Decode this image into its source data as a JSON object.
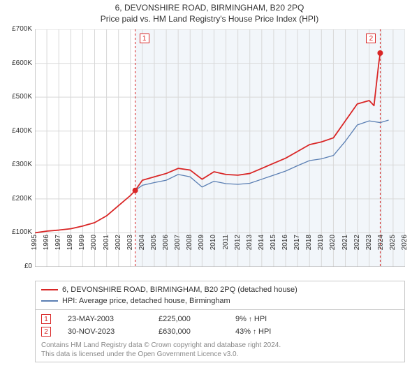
{
  "title_line1": "6, DEVONSHIRE ROAD, BIRMINGHAM, B20 2PQ",
  "title_line2": "Price paid vs. HM Land Registry's House Price Index (HPI)",
  "chart": {
    "type": "line",
    "xlim": [
      1995,
      2026
    ],
    "ylim": [
      0,
      700000
    ],
    "ytick_step": 100000,
    "ytick_labels": [
      "£0",
      "£100K",
      "£200K",
      "£300K",
      "£400K",
      "£500K",
      "£600K",
      "£700K"
    ],
    "xticks": [
      1995,
      1996,
      1997,
      1998,
      1999,
      2000,
      2001,
      2002,
      2003,
      2004,
      2005,
      2006,
      2007,
      2008,
      2009,
      2010,
      2011,
      2012,
      2013,
      2014,
      2015,
      2016,
      2017,
      2018,
      2019,
      2020,
      2021,
      2022,
      2023,
      2024,
      2025,
      2026
    ],
    "background_shade_from": 2003.4,
    "background_shade_color": "#f2f6fa",
    "grid_color": "#d8d8d8",
    "colors": {
      "property": "#d92626",
      "hpi": "#5b7fb3",
      "disclaimer_text": "#888888"
    },
    "series": {
      "property_line": {
        "color": "#d92626",
        "width": 1.8,
        "data": [
          [
            1995,
            100000
          ],
          [
            1996,
            105000
          ],
          [
            1997,
            108000
          ],
          [
            1998,
            112000
          ],
          [
            1999,
            120000
          ],
          [
            2000,
            130000
          ],
          [
            2001,
            150000
          ],
          [
            2002,
            180000
          ],
          [
            2003,
            210000
          ],
          [
            2003.4,
            225000
          ],
          [
            2004,
            255000
          ],
          [
            2005,
            265000
          ],
          [
            2006,
            275000
          ],
          [
            2007,
            290000
          ],
          [
            2008,
            285000
          ],
          [
            2009,
            258000
          ],
          [
            2010,
            280000
          ],
          [
            2011,
            272000
          ],
          [
            2012,
            270000
          ],
          [
            2013,
            275000
          ],
          [
            2014,
            290000
          ],
          [
            2015,
            305000
          ],
          [
            2016,
            320000
          ],
          [
            2017,
            340000
          ],
          [
            2018,
            360000
          ],
          [
            2019,
            368000
          ],
          [
            2020,
            380000
          ],
          [
            2021,
            430000
          ],
          [
            2022,
            480000
          ],
          [
            2023,
            490000
          ],
          [
            2023.4,
            475000
          ],
          [
            2023.8,
            600000
          ],
          [
            2023.92,
            630000
          ]
        ]
      },
      "hpi_line": {
        "color": "#5b7fb3",
        "width": 1.3,
        "data": [
          [
            2003.4,
            225000
          ],
          [
            2004,
            240000
          ],
          [
            2005,
            248000
          ],
          [
            2006,
            255000
          ],
          [
            2007,
            272000
          ],
          [
            2008,
            265000
          ],
          [
            2009,
            235000
          ],
          [
            2010,
            252000
          ],
          [
            2011,
            245000
          ],
          [
            2012,
            243000
          ],
          [
            2013,
            246000
          ],
          [
            2014,
            258000
          ],
          [
            2015,
            270000
          ],
          [
            2016,
            282000
          ],
          [
            2017,
            298000
          ],
          [
            2018,
            313000
          ],
          [
            2019,
            318000
          ],
          [
            2020,
            328000
          ],
          [
            2021,
            370000
          ],
          [
            2022,
            418000
          ],
          [
            2023,
            430000
          ],
          [
            2023.92,
            425000
          ],
          [
            2024.6,
            432000
          ]
        ]
      }
    },
    "sale_markers": [
      {
        "n": "1",
        "x": 2003.4,
        "y": 225000,
        "color": "#d92626"
      },
      {
        "n": "2",
        "x": 2023.92,
        "y": 630000,
        "color": "#d92626"
      }
    ],
    "event_lines": [
      {
        "x": 2003.4,
        "color": "#d92626",
        "dash": true
      },
      {
        "x": 2023.92,
        "color": "#d92626",
        "dash": true
      }
    ]
  },
  "legend": {
    "property": "6, DEVONSHIRE ROAD, BIRMINGHAM, B20 2PQ (detached house)",
    "hpi": "HPI: Average price, detached house, Birmingham"
  },
  "sales": [
    {
      "n": "1",
      "date": "23-MAY-2003",
      "price": "£225,000",
      "delta": "9%",
      "arrow": "↑",
      "suffix": "HPI",
      "color": "#d92626"
    },
    {
      "n": "2",
      "date": "30-NOV-2023",
      "price": "£630,000",
      "delta": "43%",
      "arrow": "↑",
      "suffix": "HPI",
      "color": "#d92626"
    }
  ],
  "disclaimer_line1": "Contains HM Land Registry data © Crown copyright and database right 2024.",
  "disclaimer_line2": "This data is licensed under the Open Government Licence v3.0."
}
